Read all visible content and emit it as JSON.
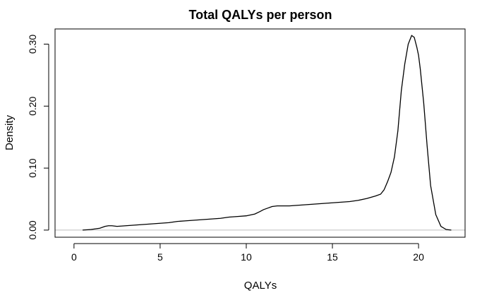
{
  "chart_data": {
    "type": "line",
    "title": "Total QALYs per person",
    "xlabel": "QALYs",
    "ylabel": "Density",
    "xlim": [
      -1.1,
      22.7
    ],
    "ylim": [
      -0.0115,
      0.3245
    ],
    "x_ticks": [
      0,
      5,
      10,
      15,
      20
    ],
    "x_tick_labels": [
      "0",
      "5",
      "10",
      "15",
      "20"
    ],
    "y_ticks": [
      0.0,
      0.1,
      0.2,
      0.3
    ],
    "y_tick_labels": [
      "0.00",
      "0.10",
      "0.20",
      "0.30"
    ],
    "zero_line": true,
    "colors": {
      "line": "#000000",
      "zero_line": "#bebebe",
      "frame": "#000000"
    },
    "series": [
      {
        "x": [
          0.5,
          1.0,
          1.5,
          1.8,
          2.0,
          2.2,
          2.5,
          3.0,
          3.5,
          4.0,
          4.5,
          5.0,
          5.5,
          6.0,
          6.5,
          7.0,
          7.5,
          8.0,
          8.5,
          9.0,
          9.5,
          10.0,
          10.5,
          10.8,
          11.0,
          11.3,
          11.5,
          11.8,
          12.0,
          12.5,
          13.0,
          13.5,
          14.0,
          14.5,
          15.0,
          15.5,
          16.0,
          16.5,
          17.0,
          17.5,
          17.8,
          18.0,
          18.2,
          18.4,
          18.6,
          18.8,
          19.0,
          19.2,
          19.4,
          19.6,
          19.75,
          19.9,
          20.0,
          20.1,
          20.3,
          20.5,
          20.7,
          21.0,
          21.3,
          21.6,
          21.9
        ],
        "y": [
          0.0,
          0.001,
          0.003,
          0.006,
          0.007,
          0.007,
          0.006,
          0.007,
          0.008,
          0.009,
          0.01,
          0.011,
          0.012,
          0.014,
          0.015,
          0.016,
          0.017,
          0.018,
          0.019,
          0.021,
          0.022,
          0.023,
          0.026,
          0.03,
          0.033,
          0.036,
          0.038,
          0.039,
          0.039,
          0.039,
          0.04,
          0.041,
          0.042,
          0.043,
          0.044,
          0.045,
          0.046,
          0.048,
          0.051,
          0.055,
          0.058,
          0.065,
          0.078,
          0.093,
          0.118,
          0.16,
          0.225,
          0.268,
          0.3,
          0.314,
          0.311,
          0.295,
          0.282,
          0.26,
          0.205,
          0.135,
          0.072,
          0.025,
          0.006,
          0.001,
          0.0
        ]
      }
    ]
  }
}
